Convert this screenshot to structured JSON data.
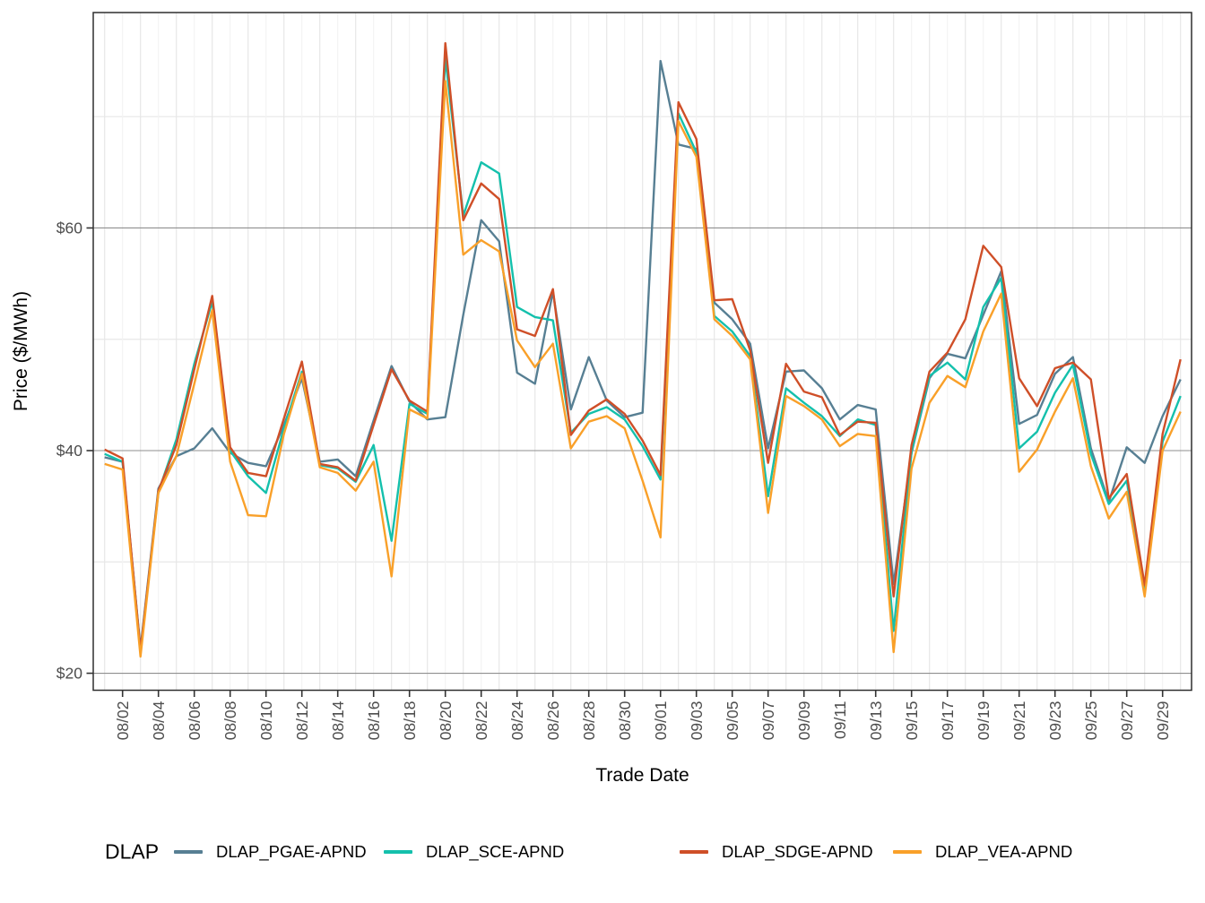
{
  "chart_data": {
    "type": "line",
    "title": "",
    "xlabel": "Trade Date",
    "ylabel": "Price ($/MWh)",
    "legend_title": "DLAP",
    "legend_position": "bottom",
    "grid": true,
    "ylim": [
      18.3,
      79.4
    ],
    "ytick_values": [
      20,
      40,
      60
    ],
    "ytick_labels": [
      "$20",
      "$40",
      "$60"
    ],
    "ytick_minor_values": [
      30,
      50,
      70
    ],
    "xtick_labels": [
      "08/02",
      "08/04",
      "08/06",
      "08/08",
      "08/10",
      "08/12",
      "08/14",
      "08/16",
      "08/18",
      "08/20",
      "08/22",
      "08/24",
      "08/26",
      "08/28",
      "08/30",
      "09/01",
      "09/03",
      "09/05",
      "09/07",
      "09/09",
      "09/11",
      "09/13",
      "09/15",
      "09/17",
      "09/19",
      "09/21",
      "09/23",
      "09/25",
      "09/27",
      "09/29"
    ],
    "x_dates": [
      "08/01",
      "08/02",
      "08/03",
      "08/04",
      "08/05",
      "08/06",
      "08/07",
      "08/08",
      "08/09",
      "08/10",
      "08/11",
      "08/12",
      "08/13",
      "08/14",
      "08/15",
      "08/16",
      "08/17",
      "08/18",
      "08/19",
      "08/20",
      "08/21",
      "08/22",
      "08/23",
      "08/24",
      "08/25",
      "08/26",
      "08/27",
      "08/28",
      "08/29",
      "08/30",
      "08/31",
      "09/01",
      "09/02",
      "09/03",
      "09/04",
      "09/05",
      "09/06",
      "09/07",
      "09/08",
      "09/09",
      "09/10",
      "09/11",
      "09/12",
      "09/13",
      "09/14",
      "09/15",
      "09/16",
      "09/17",
      "09/18",
      "09/19",
      "09/20",
      "09/21",
      "09/22",
      "09/23",
      "09/24",
      "09/25",
      "09/26",
      "09/27",
      "09/28",
      "09/29",
      "09/30"
    ],
    "series": [
      {
        "name": "DLAP_PGAE-APND",
        "color": "#577f93",
        "values": [
          39.4,
          39.0,
          22.2,
          36.6,
          39.5,
          40.2,
          42.0,
          39.8,
          38.9,
          38.6,
          42.3,
          46.5,
          39.0,
          39.2,
          37.7,
          42.7,
          47.6,
          44.4,
          42.8,
          43.0,
          52.2,
          60.7,
          58.8,
          47.0,
          46.0,
          54.3,
          43.7,
          48.4,
          44.5,
          43.0,
          43.4,
          75.0,
          67.5,
          67.1,
          53.3,
          51.8,
          49.6,
          40.2,
          47.1,
          47.2,
          45.6,
          42.8,
          44.1,
          43.7,
          28.0,
          39.8,
          46.5,
          48.7,
          48.3,
          52.2,
          56.1,
          42.4,
          43.2,
          46.9,
          48.4,
          40.2,
          35.4,
          40.3,
          38.9,
          43.1,
          46.4
        ]
      },
      {
        "name": "DLAP_SCE-APND",
        "color": "#14c0ac",
        "values": [
          39.7,
          39.0,
          22.0,
          36.3,
          41.0,
          47.8,
          53.4,
          40.0,
          37.7,
          36.2,
          42.0,
          47.1,
          38.7,
          38.4,
          37.2,
          40.5,
          31.9,
          44.2,
          43.3,
          75.3,
          61.1,
          65.9,
          64.9,
          52.9,
          52.0,
          51.7,
          41.6,
          43.3,
          43.9,
          42.8,
          40.4,
          37.4,
          70.3,
          66.8,
          52.1,
          50.7,
          48.5,
          35.9,
          45.6,
          44.3,
          43.1,
          41.3,
          42.8,
          42.3,
          23.8,
          39.9,
          46.7,
          47.9,
          46.4,
          52.9,
          55.5,
          40.2,
          41.7,
          45.2,
          47.7,
          39.7,
          35.2,
          37.3,
          27.5,
          40.8,
          44.9
        ]
      },
      {
        "name": "DLAP_SDGE-APND",
        "color": "#cf4f28",
        "values": [
          40.1,
          39.3,
          22.0,
          36.4,
          40.5,
          47.3,
          53.9,
          40.3,
          38.0,
          37.7,
          42.9,
          48.0,
          38.8,
          38.5,
          37.3,
          42.3,
          47.3,
          44.5,
          43.5,
          76.6,
          60.7,
          64.0,
          62.6,
          50.9,
          50.3,
          54.5,
          41.4,
          43.6,
          44.6,
          43.3,
          40.9,
          37.8,
          71.3,
          68.0,
          53.5,
          53.6,
          49.0,
          38.9,
          47.8,
          45.3,
          44.8,
          41.4,
          42.6,
          42.5,
          26.9,
          40.5,
          47.1,
          48.8,
          51.8,
          58.4,
          56.5,
          46.5,
          44.0,
          47.4,
          47.9,
          46.4,
          35.7,
          37.9,
          27.9,
          41.5,
          48.2
        ]
      },
      {
        "name": "DLAP_VEA-APND",
        "color": "#f9a029",
        "values": [
          38.8,
          38.3,
          21.5,
          36.2,
          39.5,
          46.0,
          52.6,
          39.0,
          34.2,
          34.1,
          41.5,
          46.9,
          38.5,
          38.0,
          36.4,
          39.0,
          28.7,
          43.7,
          42.9,
          73.2,
          57.6,
          58.9,
          57.9,
          49.9,
          47.5,
          49.6,
          40.2,
          42.6,
          43.1,
          42.0,
          37.3,
          32.2,
          69.6,
          66.4,
          51.8,
          50.3,
          48.2,
          34.4,
          44.9,
          44.0,
          42.8,
          40.4,
          41.5,
          41.3,
          21.9,
          38.4,
          44.3,
          46.7,
          45.7,
          50.7,
          54.1,
          38.1,
          40.1,
          43.5,
          46.5,
          38.6,
          33.9,
          36.3,
          26.9,
          40.0,
          43.5
        ]
      }
    ],
    "style": {
      "panel_border_color": "#2f2f2f",
      "grid_major_h_color": "#8f8f8f",
      "grid_minor_color": "#e7e7e7",
      "grid_major_v_color": "#f3f3f3",
      "tick_color": "#333333",
      "tick_label_color": "#4d4d4d",
      "axis_title_color": "#000000"
    }
  },
  "legend": {
    "title": "DLAP",
    "items": [
      {
        "label": "DLAP_PGAE-APND",
        "color": "#577f93"
      },
      {
        "label": "DLAP_SCE-APND",
        "color": "#14c0ac"
      },
      {
        "label": "DLAP_SDGE-APND",
        "color": "#cf4f28"
      },
      {
        "label": "DLAP_VEA-APND",
        "color": "#f9a029"
      }
    ]
  }
}
